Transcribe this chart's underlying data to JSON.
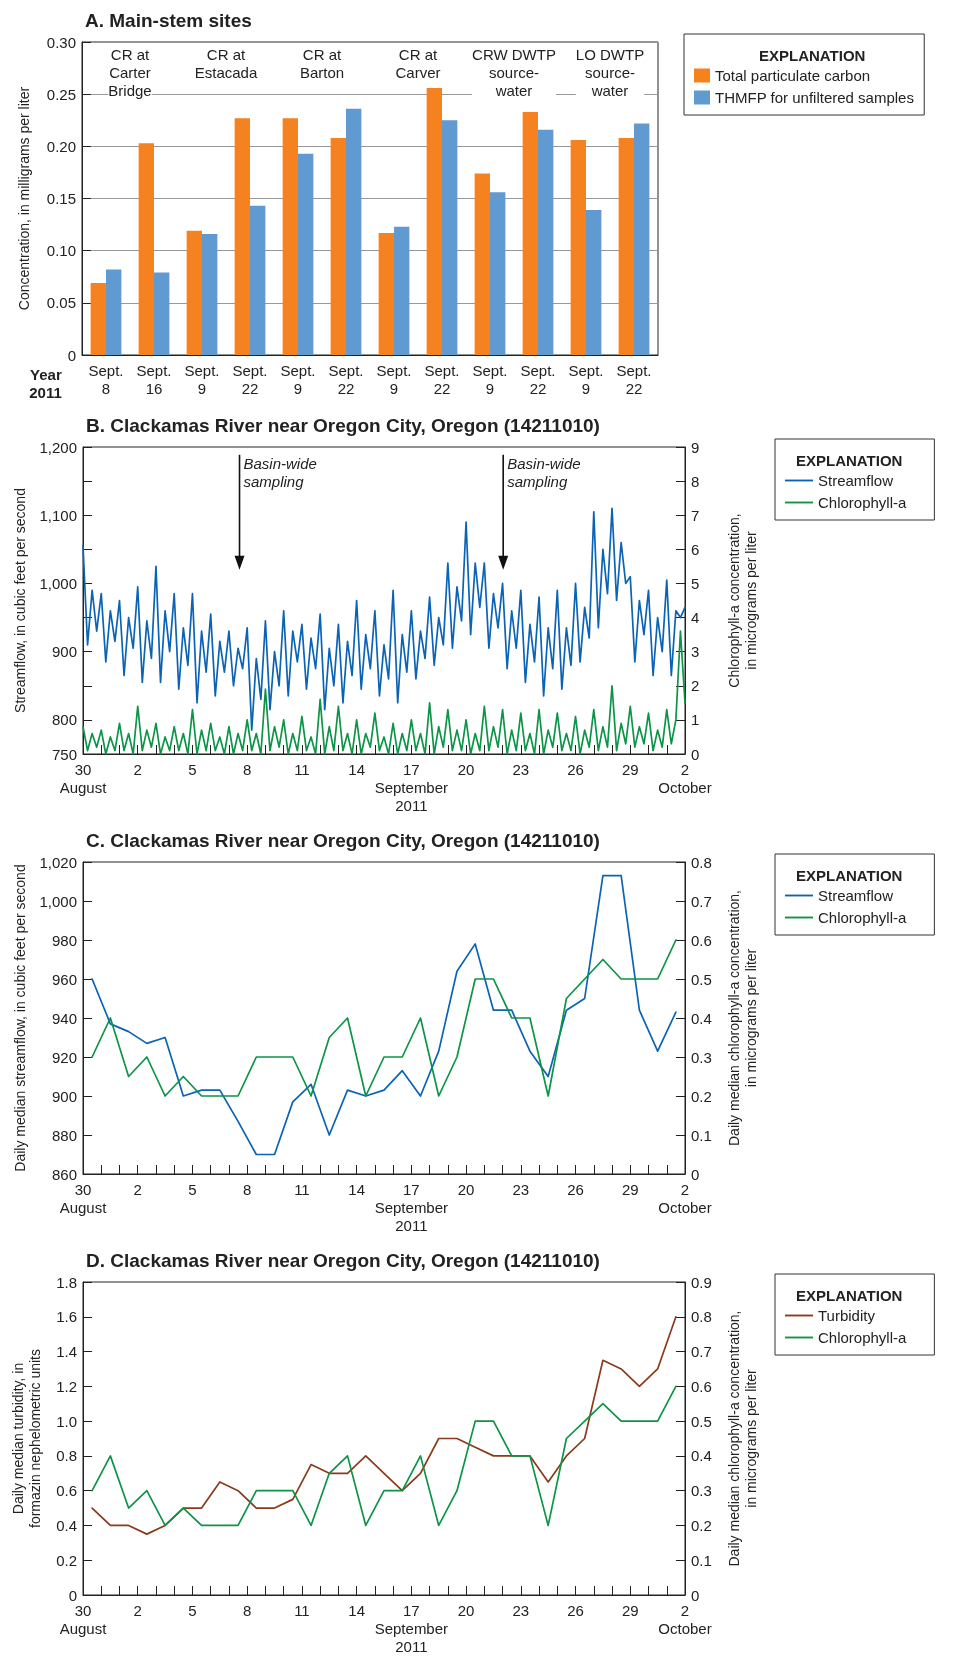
{
  "chart_data": [
    {
      "type": "bar",
      "title": "A. Main-stem sites",
      "ylabel": "Concentration, in milligrams per liter",
      "xlabel": "Year\n2011",
      "legend_title": "EXPLANATION",
      "legend": "right",
      "grid": "y",
      "categories": [
        "Sept.\n8",
        "Sept.\n16",
        "Sept.\n9",
        "Sept.\n22",
        "Sept.\n9",
        "Sept.\n22",
        "Sept.\n9",
        "Sept.\n22",
        "Sept.\n9",
        "Sept.\n22",
        "Sept.\n9",
        "Sept.\n22"
      ],
      "annotations": [
        "CR at\nCarter\nBridge",
        "CR at\nEstacada",
        "CR at\nBarton",
        "CR at\nCarver",
        "CRW DWTP\nsource-\nwater",
        "LO DWTP\nsource-\nwater"
      ],
      "ylim": [
        0,
        0.3
      ],
      "yticks": [
        0,
        0.05,
        {
          "value": 0.1,
          "label": "0.10"
        },
        0.15,
        {
          "value": 0.2,
          "label": "0.20"
        },
        0.25,
        {
          "value": 0.3,
          "label": "0.30"
        }
      ],
      "series": [
        {
          "name": "Total particulate carbon",
          "color": "#f5821f",
          "values": [
            0.069,
            0.203,
            0.119,
            0.227,
            0.227,
            0.208,
            0.117,
            0.256,
            0.174,
            0.233,
            0.206,
            0.208
          ]
        },
        {
          "name": "THMFP for unfiltered samples",
          "color": "#6199d1",
          "values": [
            0.082,
            0.079,
            0.116,
            0.143,
            0.193,
            0.236,
            0.123,
            0.225,
            0.156,
            0.216,
            0.139,
            0.222
          ]
        }
      ]
    },
    {
      "type": "line",
      "title": "B. Clackamas River near Oregon City, Oregon (14211010)",
      "ylabel": "Streamflow, in cubic feet per second",
      "y2label": "Chlorophyll-a concentration,\nin micrograms per liter",
      "legend_title": "EXPLANATION",
      "legend": "right",
      "marker": "none",
      "xlim": [
        "2011-08-30",
        "2011-10-02"
      ],
      "xticks": [
        {
          "value": "2011-08-30",
          "label": "30\nAugust"
        },
        {
          "value": "2011-08-31",
          "label": null
        },
        {
          "value": "2011-09-01",
          "label": null
        },
        {
          "value": "2011-09-02",
          "label": "2"
        },
        {
          "value": "2011-09-03",
          "label": null
        },
        {
          "value": "2011-09-04",
          "label": null
        },
        {
          "value": "2011-09-05",
          "label": "5"
        },
        {
          "value": "2011-09-06",
          "label": null
        },
        {
          "value": "2011-09-07",
          "label": null
        },
        {
          "value": "2011-09-08",
          "label": "8"
        },
        {
          "value": "2011-09-09",
          "label": null
        },
        {
          "value": "2011-09-10",
          "label": null
        },
        {
          "value": "2011-09-11",
          "label": "11"
        },
        {
          "value": "2011-09-12",
          "label": null
        },
        {
          "value": "2011-09-13",
          "label": null
        },
        {
          "value": "2011-09-14",
          "label": "14"
        },
        {
          "value": "2011-09-15",
          "label": null
        },
        {
          "value": "2011-09-16",
          "label": null
        },
        {
          "value": "2011-09-17",
          "label": "17\nSeptember\n2011"
        },
        {
          "value": "2011-09-18",
          "label": null
        },
        {
          "value": "2011-09-19",
          "label": null
        },
        {
          "value": "2011-09-20",
          "label": "20"
        },
        {
          "value": "2011-09-21",
          "label": null
        },
        {
          "value": "2011-09-22",
          "label": null
        },
        {
          "value": "2011-09-23",
          "label": "23"
        },
        {
          "value": "2011-09-24",
          "label": null
        },
        {
          "value": "2011-09-25",
          "label": null
        },
        {
          "value": "2011-09-26",
          "label": "26"
        },
        {
          "value": "2011-09-27",
          "label": null
        },
        {
          "value": "2011-09-28",
          "label": null
        },
        {
          "value": "2011-09-29",
          "label": "29"
        },
        {
          "value": "2011-09-30",
          "label": null
        },
        {
          "value": "2011-10-01",
          "label": null
        },
        {
          "value": "2011-10-02",
          "label": "2\nOctober"
        }
      ],
      "ylim": [
        750,
        1200
      ],
      "yticks": [
        750,
        800,
        {
          "value": 850,
          "label": null
        },
        900,
        {
          "value": 950,
          "label": null
        },
        {
          "value": 1000,
          "label": "1,000"
        },
        {
          "value": 1050,
          "label": null
        },
        {
          "value": 1100,
          "label": "1,100"
        },
        {
          "value": 1150,
          "label": null
        },
        {
          "value": 1200,
          "label": "1,200"
        }
      ],
      "y2lim": [
        0,
        9
      ],
      "y2ticks": [
        0,
        1,
        2,
        3,
        4,
        5,
        6,
        7,
        8,
        9
      ],
      "annotations": [
        "Basin-wide\nsampling",
        "Basin-wide\nsampling"
      ],
      "x": [
        "2011-08-30T00:00",
        "2011-08-30T06:00",
        "2011-08-30T12:00",
        "2011-08-30T18:00",
        "2011-08-31T00:00",
        "2011-08-31T06:00",
        "2011-08-31T12:00",
        "2011-08-31T18:00",
        "2011-09-01T00:00",
        "2011-09-01T06:00",
        "2011-09-01T12:00",
        "2011-09-01T18:00",
        "2011-09-02T00:00",
        "2011-09-02T06:00",
        "2011-09-02T12:00",
        "2011-09-02T18:00",
        "2011-09-03T00:00",
        "2011-09-03T06:00",
        "2011-09-03T12:00",
        "2011-09-03T18:00",
        "2011-09-04T00:00",
        "2011-09-04T06:00",
        "2011-09-04T12:00",
        "2011-09-04T18:00",
        "2011-09-05T00:00",
        "2011-09-05T06:00",
        "2011-09-05T12:00",
        "2011-09-05T18:00",
        "2011-09-06T00:00",
        "2011-09-06T06:00",
        "2011-09-06T12:00",
        "2011-09-06T18:00",
        "2011-09-07T00:00",
        "2011-09-07T06:00",
        "2011-09-07T12:00",
        "2011-09-07T18:00",
        "2011-09-08T00:00",
        "2011-09-08T06:00",
        "2011-09-08T12:00",
        "2011-09-08T18:00",
        "2011-09-09T00:00",
        "2011-09-09T06:00",
        "2011-09-09T12:00",
        "2011-09-09T18:00",
        "2011-09-10T00:00",
        "2011-09-10T06:00",
        "2011-09-10T12:00",
        "2011-09-10T18:00",
        "2011-09-11T00:00",
        "2011-09-11T06:00",
        "2011-09-11T12:00",
        "2011-09-11T18:00",
        "2011-09-12T00:00",
        "2011-09-12T06:00",
        "2011-09-12T12:00",
        "2011-09-12T18:00",
        "2011-09-13T00:00",
        "2011-09-13T06:00",
        "2011-09-13T12:00",
        "2011-09-13T18:00",
        "2011-09-14T00:00",
        "2011-09-14T06:00",
        "2011-09-14T12:00",
        "2011-09-14T18:00",
        "2011-09-15T00:00",
        "2011-09-15T06:00",
        "2011-09-15T12:00",
        "2011-09-15T18:00",
        "2011-09-16T00:00",
        "2011-09-16T06:00",
        "2011-09-16T12:00",
        "2011-09-16T18:00",
        "2011-09-17T00:00",
        "2011-09-17T06:00",
        "2011-09-17T12:00",
        "2011-09-17T18:00",
        "2011-09-18T00:00",
        "2011-09-18T06:00",
        "2011-09-18T12:00",
        "2011-09-18T18:00",
        "2011-09-19T00:00",
        "2011-09-19T06:00",
        "2011-09-19T12:00",
        "2011-09-19T18:00",
        "2011-09-20T00:00",
        "2011-09-20T06:00",
        "2011-09-20T12:00",
        "2011-09-20T18:00",
        "2011-09-21T00:00",
        "2011-09-21T06:00",
        "2011-09-21T12:00",
        "2011-09-21T18:00",
        "2011-09-22T00:00",
        "2011-09-22T06:00",
        "2011-09-22T12:00",
        "2011-09-22T18:00",
        "2011-09-23T00:00",
        "2011-09-23T06:00",
        "2011-09-23T12:00",
        "2011-09-23T18:00",
        "2011-09-24T00:00",
        "2011-09-24T06:00",
        "2011-09-24T12:00",
        "2011-09-24T18:00",
        "2011-09-25T00:00",
        "2011-09-25T06:00",
        "2011-09-25T12:00",
        "2011-09-25T18:00",
        "2011-09-26T00:00",
        "2011-09-26T06:00",
        "2011-09-26T12:00",
        "2011-09-26T18:00",
        "2011-09-27T00:00",
        "2011-09-27T06:00",
        "2011-09-27T12:00",
        "2011-09-27T18:00",
        "2011-09-28T00:00",
        "2011-09-28T06:00",
        "2011-09-28T12:00",
        "2011-09-28T18:00",
        "2011-09-29T00:00",
        "2011-09-29T06:00",
        "2011-09-29T12:00",
        "2011-09-29T18:00",
        "2011-09-30T00:00",
        "2011-09-30T06:00",
        "2011-09-30T12:00",
        "2011-09-30T18:00",
        "2011-10-01T00:00",
        "2011-10-01T06:00",
        "2011-10-01T12:00",
        "2011-10-01T18:00",
        "2011-10-02T00:00"
      ],
      "series": [
        {
          "name": "Streamflow",
          "color": "#0b63b6",
          "values": [
            1055,
            910,
            990,
            930,
            985,
            885,
            960,
            915,
            975,
            865,
            950,
            905,
            995,
            855,
            945,
            890,
            1025,
            855,
            960,
            900,
            985,
            845,
            935,
            880,
            985,
            825,
            930,
            870,
            955,
            835,
            915,
            870,
            930,
            850,
            905,
            875,
            935,
            785,
            890,
            830,
            945,
            815,
            900,
            850,
            960,
            835,
            930,
            885,
            940,
            845,
            920,
            875,
            955,
            815,
            905,
            850,
            940,
            825,
            915,
            865,
            975,
            845,
            925,
            875,
            960,
            835,
            910,
            860,
            990,
            825,
            925,
            870,
            960,
            860,
            930,
            890,
            980,
            880,
            950,
            910,
            1030,
            905,
            995,
            945,
            1090,
            925,
            1030,
            965,
            1030,
            905,
            985,
            935,
            1000,
            875,
            960,
            905,
            990,
            855,
            940,
            885,
            980,
            835,
            935,
            875,
            990,
            845,
            935,
            880,
            1000,
            885,
            965,
            920,
            1105,
            935,
            1050,
            985,
            1110,
            975,
            1060,
            1000,
            1010,
            885,
            975,
            925,
            990,
            865,
            950,
            900,
            1005,
            865,
            960,
            950,
            965
          ]
        },
        {
          "name": "Chlorophyll-a",
          "color": "#0c9447",
          "axis": "y2",
          "values": [
            0.8,
            0.1,
            0.6,
            0.2,
            0.7,
            0.0,
            0.5,
            0.1,
            0.9,
            0.1,
            0.6,
            0.0,
            1.4,
            0.1,
            0.7,
            0.2,
            0.9,
            0.0,
            0.5,
            0.1,
            0.8,
            0.1,
            0.6,
            0.0,
            1.3,
            0.0,
            0.7,
            0.1,
            0.9,
            0.1,
            0.5,
            0.0,
            0.8,
            0.0,
            0.6,
            0.1,
            1.0,
            0.1,
            0.6,
            0.0,
            1.9,
            0.1,
            0.8,
            0.2,
            1.0,
            0.0,
            0.6,
            0.1,
            1.1,
            0.1,
            0.5,
            0.0,
            1.6,
            0.0,
            0.8,
            0.1,
            1.4,
            0.1,
            0.6,
            0.0,
            1.0,
            0.0,
            0.6,
            0.2,
            1.2,
            0.1,
            0.5,
            0.0,
            0.9,
            0.0,
            0.6,
            0.1,
            1.0,
            0.1,
            0.6,
            0.0,
            1.5,
            0.0,
            0.8,
            0.2,
            1.3,
            0.1,
            0.7,
            0.1,
            1.0,
            0.0,
            0.6,
            0.1,
            1.4,
            0.1,
            0.8,
            0.2,
            1.3,
            0.0,
            0.7,
            0.1,
            1.2,
            0.1,
            0.6,
            0.0,
            1.3,
            0.0,
            0.7,
            0.2,
            1.2,
            0.1,
            0.6,
            0.1,
            1.1,
            0.0,
            0.7,
            0.2,
            1.3,
            0.1,
            0.8,
            0.2,
            2.0,
            0.1,
            0.9,
            0.3,
            1.4,
            0.2,
            0.8,
            0.3,
            1.2,
            0.1,
            0.7,
            0.2,
            1.3,
            0.3,
            1.0,
            3.6,
            1.5
          ]
        }
      ]
    },
    {
      "type": "line",
      "title": "C. Clackamas River near Oregon City, Oregon (14211010)",
      "ylabel": "Daily median streamflow, in cubic feet per second",
      "y2label": "Daily median chlorophyll-a concentration,\nin micrograms per liter",
      "legend_title": "EXPLANATION",
      "legend": "right",
      "marker": "none",
      "xlim": [
        "2011-08-30",
        "2011-10-02"
      ],
      "xticks": [
        {
          "value": "2011-08-30",
          "label": "30\nAugust"
        },
        {
          "value": "2011-08-31",
          "label": null
        },
        {
          "value": "2011-09-01",
          "label": null
        },
        {
          "value": "2011-09-02",
          "label": "2"
        },
        {
          "value": "2011-09-03",
          "label": null
        },
        {
          "value": "2011-09-04",
          "label": null
        },
        {
          "value": "2011-09-05",
          "label": "5"
        },
        {
          "value": "2011-09-06",
          "label": null
        },
        {
          "value": "2011-09-07",
          "label": null
        },
        {
          "value": "2011-09-08",
          "label": "8"
        },
        {
          "value": "2011-09-09",
          "label": null
        },
        {
          "value": "2011-09-10",
          "label": null
        },
        {
          "value": "2011-09-11",
          "label": "11"
        },
        {
          "value": "2011-09-12",
          "label": null
        },
        {
          "value": "2011-09-13",
          "label": null
        },
        {
          "value": "2011-09-14",
          "label": "14"
        },
        {
          "value": "2011-09-15",
          "label": null
        },
        {
          "value": "2011-09-16",
          "label": null
        },
        {
          "value": "2011-09-17",
          "label": "17\nSeptember\n2011"
        },
        {
          "value": "2011-09-18",
          "label": null
        },
        {
          "value": "2011-09-19",
          "label": null
        },
        {
          "value": "2011-09-20",
          "label": "20"
        },
        {
          "value": "2011-09-21",
          "label": null
        },
        {
          "value": "2011-09-22",
          "label": null
        },
        {
          "value": "2011-09-23",
          "label": "23"
        },
        {
          "value": "2011-09-24",
          "label": null
        },
        {
          "value": "2011-09-25",
          "label": null
        },
        {
          "value": "2011-09-26",
          "label": "26"
        },
        {
          "value": "2011-09-27",
          "label": null
        },
        {
          "value": "2011-09-28",
          "label": null
        },
        {
          "value": "2011-09-29",
          "label": "29"
        },
        {
          "value": "2011-09-30",
          "label": null
        },
        {
          "value": "2011-10-01",
          "label": null
        },
        {
          "value": "2011-10-02",
          "label": "2\nOctober"
        }
      ],
      "ylim": [
        860,
        1020
      ],
      "yticks": [
        860,
        880,
        900,
        920,
        940,
        960,
        980,
        {
          "value": 1000,
          "label": "1,000"
        },
        {
          "value": 1020,
          "label": "1,020"
        }
      ],
      "y2lim": [
        0,
        0.8
      ],
      "y2ticks": [
        0,
        0.1,
        0.2,
        0.3,
        0.4,
        0.5,
        0.6,
        0.7,
        0.8
      ],
      "x": [
        "2011-08-30T12:00",
        "2011-08-31T12:00",
        "2011-09-01T12:00",
        "2011-09-02T12:00",
        "2011-09-03T12:00",
        "2011-09-04T12:00",
        "2011-09-05T12:00",
        "2011-09-06T12:00",
        "2011-09-07T12:00",
        "2011-09-08T12:00",
        "2011-09-09T12:00",
        "2011-09-10T12:00",
        "2011-09-11T12:00",
        "2011-09-12T12:00",
        "2011-09-13T12:00",
        "2011-09-14T12:00",
        "2011-09-15T12:00",
        "2011-09-16T12:00",
        "2011-09-17T12:00",
        "2011-09-18T12:00",
        "2011-09-19T12:00",
        "2011-09-20T12:00",
        "2011-09-21T12:00",
        "2011-09-22T12:00",
        "2011-09-23T12:00",
        "2011-09-24T12:00",
        "2011-09-25T12:00",
        "2011-09-26T12:00",
        "2011-09-27T12:00",
        "2011-09-28T12:00",
        "2011-09-29T12:00",
        "2011-09-30T12:00",
        "2011-10-01T12:00"
      ],
      "series": [
        {
          "name": "Streamflow",
          "color": "#0b63b6",
          "values": [
            960,
            937,
            933,
            927,
            930,
            900,
            903,
            903,
            887,
            870,
            870,
            897,
            906,
            880,
            903,
            900,
            903,
            913,
            900,
            923,
            964,
            978,
            944,
            944,
            923,
            910,
            944,
            950,
            1013,
            1013,
            944,
            923,
            943
          ]
        },
        {
          "name": "Chlorophyll-a",
          "color": "#0c9447",
          "axis": "y2",
          "values": [
            0.3,
            0.4,
            0.25,
            0.3,
            0.2,
            0.25,
            0.2,
            0.2,
            0.2,
            0.3,
            0.3,
            0.3,
            0.2,
            0.35,
            0.4,
            0.2,
            0.3,
            0.3,
            0.4,
            0.2,
            0.3,
            0.5,
            0.5,
            0.4,
            0.4,
            0.2,
            0.45,
            0.5,
            0.55,
            0.5,
            0.5,
            0.5,
            0.6
          ]
        }
      ]
    },
    {
      "type": "line",
      "title": "D. Clackamas River near Oregon City, Oregon (14211010)",
      "ylabel": "Daily median turbidity, in\nformazin nephelometric units",
      "y2label": "Daily median chlorophyll-a concentration,\nin micrograms per liter",
      "legend_title": "EXPLANATION",
      "legend": "right",
      "marker": "none",
      "xlim": [
        "2011-08-30",
        "2011-10-02"
      ],
      "xticks": [
        {
          "value": "2011-08-30",
          "label": "30\nAugust"
        },
        {
          "value": "2011-08-31",
          "label": null
        },
        {
          "value": "2011-09-01",
          "label": null
        },
        {
          "value": "2011-09-02",
          "label": "2"
        },
        {
          "value": "2011-09-03",
          "label": null
        },
        {
          "value": "2011-09-04",
          "label": null
        },
        {
          "value": "2011-09-05",
          "label": "5"
        },
        {
          "value": "2011-09-06",
          "label": null
        },
        {
          "value": "2011-09-07",
          "label": null
        },
        {
          "value": "2011-09-08",
          "label": "8"
        },
        {
          "value": "2011-09-09",
          "label": null
        },
        {
          "value": "2011-09-10",
          "label": null
        },
        {
          "value": "2011-09-11",
          "label": "11"
        },
        {
          "value": "2011-09-12",
          "label": null
        },
        {
          "value": "2011-09-13",
          "label": null
        },
        {
          "value": "2011-09-14",
          "label": "14"
        },
        {
          "value": "2011-09-15",
          "label": null
        },
        {
          "value": "2011-09-16",
          "label": null
        },
        {
          "value": "2011-09-17",
          "label": "17\nSeptember\n2011"
        },
        {
          "value": "2011-09-18",
          "label": null
        },
        {
          "value": "2011-09-19",
          "label": null
        },
        {
          "value": "2011-09-20",
          "label": "20"
        },
        {
          "value": "2011-09-21",
          "label": null
        },
        {
          "value": "2011-09-22",
          "label": null
        },
        {
          "value": "2011-09-23",
          "label": "23"
        },
        {
          "value": "2011-09-24",
          "label": null
        },
        {
          "value": "2011-09-25",
          "label": null
        },
        {
          "value": "2011-09-26",
          "label": "26"
        },
        {
          "value": "2011-09-27",
          "label": null
        },
        {
          "value": "2011-09-28",
          "label": null
        },
        {
          "value": "2011-09-29",
          "label": "29"
        },
        {
          "value": "2011-09-30",
          "label": null
        },
        {
          "value": "2011-10-01",
          "label": null
        },
        {
          "value": "2011-10-02",
          "label": "2\nOctober"
        }
      ],
      "ylim": [
        0,
        1.8
      ],
      "yticks": [
        0,
        0.2,
        0.4,
        0.6,
        0.8,
        {
          "value": 1,
          "label": "1.0"
        },
        1.2,
        1.4,
        1.6,
        1.8
      ],
      "y2lim": [
        0,
        0.9
      ],
      "y2ticks": [
        0,
        0.1,
        0.2,
        0.3,
        0.4,
        0.5,
        0.6,
        0.7,
        0.8,
        0.9
      ],
      "x": [
        "2011-08-30T12:00",
        "2011-08-31T12:00",
        "2011-09-01T12:00",
        "2011-09-02T12:00",
        "2011-09-03T12:00",
        "2011-09-04T12:00",
        "2011-09-05T12:00",
        "2011-09-06T12:00",
        "2011-09-07T12:00",
        "2011-09-08T12:00",
        "2011-09-09T12:00",
        "2011-09-10T12:00",
        "2011-09-11T12:00",
        "2011-09-12T12:00",
        "2011-09-13T12:00",
        "2011-09-14T12:00",
        "2011-09-15T12:00",
        "2011-09-16T12:00",
        "2011-09-17T12:00",
        "2011-09-18T12:00",
        "2011-09-19T12:00",
        "2011-09-20T12:00",
        "2011-09-21T12:00",
        "2011-09-22T12:00",
        "2011-09-23T12:00",
        "2011-09-24T12:00",
        "2011-09-25T12:00",
        "2011-09-26T12:00",
        "2011-09-27T12:00",
        "2011-09-28T12:00",
        "2011-09-29T12:00",
        "2011-09-30T12:00",
        "2011-10-01T12:00"
      ],
      "series": [
        {
          "name": "Turbidity",
          "color": "#8a3b1c",
          "values": [
            0.5,
            0.4,
            0.4,
            0.35,
            0.4,
            0.5,
            0.5,
            0.65,
            0.6,
            0.5,
            0.5,
            0.55,
            0.75,
            0.7,
            0.7,
            0.8,
            0.7,
            0.6,
            0.7,
            0.9,
            0.9,
            0.85,
            0.8,
            0.8,
            0.8,
            0.65,
            0.8,
            0.9,
            1.35,
            1.3,
            1.2,
            1.3,
            1.6
          ]
        },
        {
          "name": "Chlorophyll-a",
          "color": "#0c9447",
          "axis": "y2",
          "values": [
            0.3,
            0.4,
            0.25,
            0.3,
            0.2,
            0.25,
            0.2,
            0.2,
            0.2,
            0.3,
            0.3,
            0.3,
            0.2,
            0.35,
            0.4,
            0.2,
            0.3,
            0.3,
            0.4,
            0.2,
            0.3,
            0.5,
            0.5,
            0.4,
            0.4,
            0.2,
            0.45,
            0.5,
            0.55,
            0.5,
            0.5,
            0.5,
            0.6
          ]
        }
      ]
    }
  ]
}
